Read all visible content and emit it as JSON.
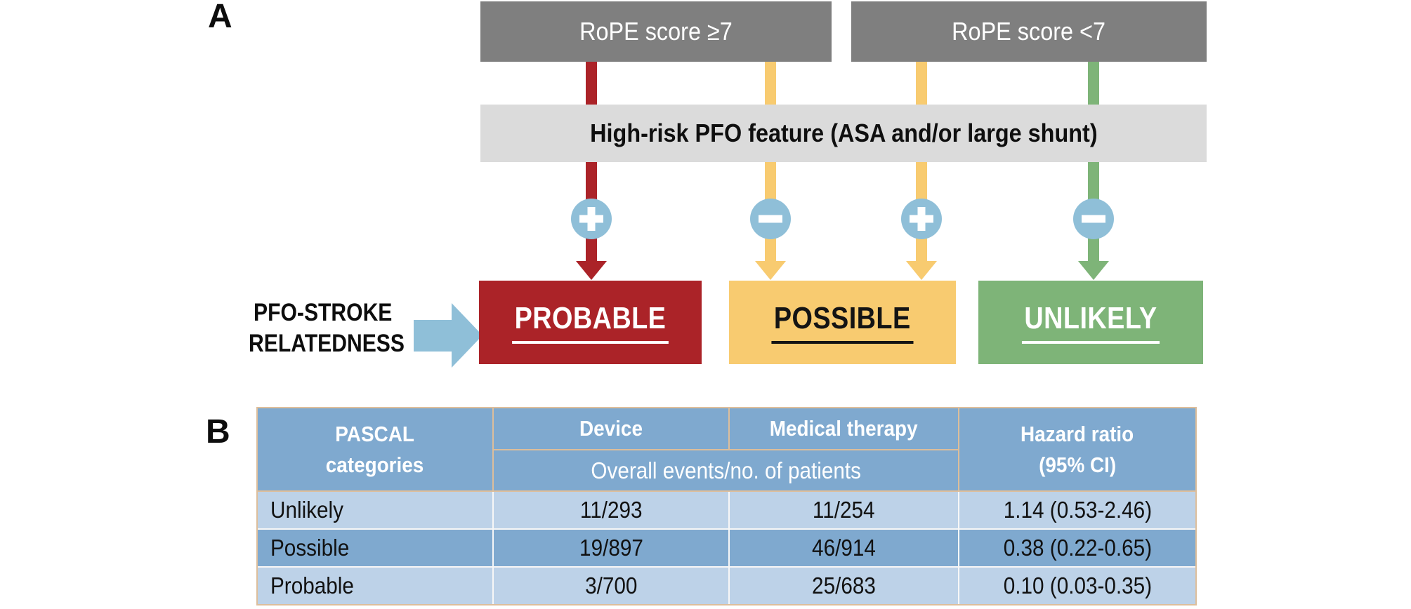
{
  "panel_a": {
    "label": "A",
    "rope_high_box": "RoPE score ≥7",
    "rope_low_box": "RoPE score <7",
    "feature_bar": "High-risk PFO feature (ASA and/or large shunt)",
    "connectors": [
      {
        "sign": "+",
        "color": "#ab2328"
      },
      {
        "sign": "−",
        "color": "#f8cb70"
      },
      {
        "sign": "+",
        "color": "#f8cb70"
      },
      {
        "sign": "−",
        "color": "#7eb478"
      }
    ],
    "relatedness": {
      "line1": "PFO-STROKE",
      "line2": "RELATEDNESS"
    },
    "outcomes": [
      {
        "label": "PROBABLE",
        "fill": "#ab2328",
        "text_color": "#ffffff"
      },
      {
        "label": "POSSIBLE",
        "fill": "#f8cb70",
        "text_color": "#141414"
      },
      {
        "label": "UNLIKELY",
        "fill": "#7eb478",
        "text_color": "#ffffff"
      }
    ]
  },
  "panel_b": {
    "label": "B",
    "table": {
      "headers": {
        "categories_line1": "PASCAL",
        "categories_line2": "categories",
        "device": "Device",
        "medical": "Medical therapy",
        "hazard_line1": "Hazard ratio",
        "hazard_line2": "(95% CI)",
        "events_subheader": "Overall events/no. of patients"
      },
      "rows": [
        {
          "category": "Unlikely",
          "device": "11/293",
          "medical": "11/254",
          "hazard": "1.14 (0.53-2.46)"
        },
        {
          "category": "Possible",
          "device": "19/897",
          "medical": "46/914",
          "hazard": "0.38 (0.22-0.65)"
        },
        {
          "category": "Probable",
          "device": "3/700",
          "medical": "25/683",
          "hazard": "0.10 (0.03-0.35)"
        }
      ]
    }
  },
  "colors": {
    "rope_box_gray": "#7f7f7f",
    "feature_bar_gray": "#dbdbdb",
    "probable_red": "#ab2328",
    "possible_yellow": "#f8cb70",
    "unlikely_green": "#7eb478",
    "accent_blue": "#8fbfd8",
    "table_header_blue": "#7fa9cf",
    "table_row_light": "#bdd2e8",
    "table_border_tan": "#ddbe9b"
  }
}
